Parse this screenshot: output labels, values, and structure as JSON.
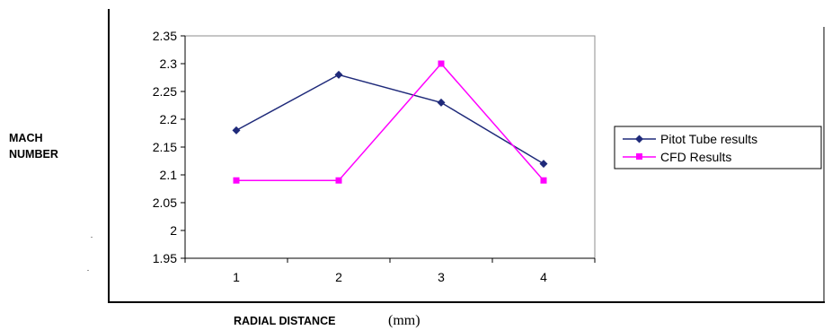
{
  "chart_data": {
    "type": "line",
    "title": "",
    "ylabel_line1": "MACH",
    "ylabel_line2": "NUMBER",
    "xlabel": "RADIAL DISTANCE",
    "xlabel_unit": "(mm)",
    "categories": [
      "1",
      "2",
      "3",
      "4"
    ],
    "ylim": [
      1.95,
      2.35
    ],
    "yticks": [
      "2.35",
      "2.3",
      "2.25",
      "2.2",
      "2.15",
      "2.1",
      "2.05",
      "2",
      "1.95"
    ],
    "legend_position": "right",
    "grid": false,
    "series": [
      {
        "name": "Pitot Tube results",
        "values": [
          2.18,
          2.28,
          2.23,
          2.12
        ],
        "color": "#1f2a7a",
        "marker": "diamond"
      },
      {
        "name": "CFD Results",
        "values": [
          2.09,
          2.09,
          2.3,
          2.09
        ],
        "color": "#ff00ff",
        "marker": "square"
      }
    ]
  }
}
